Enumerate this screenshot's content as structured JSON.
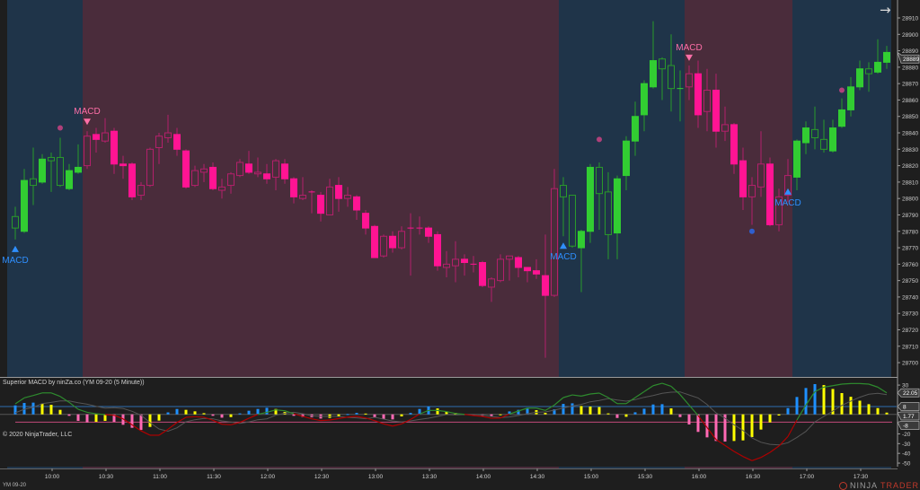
{
  "instrument": "YM 09-20",
  "indicator_title": "Superior MACD by ninZa.co (YM 09-20 (5 Minute))",
  "copyright": "© 2020 NinjaTrader, LLC",
  "logo": {
    "ninja": "NINJA",
    "trader": "TRADER",
    "reg": "®"
  },
  "nav_icon": "arrow-right-icon",
  "colors": {
    "background": "#1e1e1e",
    "region_up": "#1f3449",
    "region_down": "#4a2c3b",
    "candle_up": "#32cd32",
    "candle_up_outline": "#2a9a2a",
    "candle_down": "#ff1493",
    "candle_down_outline": "#b3206b",
    "hist_rising": "#1e90ff",
    "hist_falling": "#ff69b4",
    "hist_turning": "#ffff00",
    "macd_positive": "#2e8b2e",
    "macd_negative": "#b00000",
    "signal_line": "#555555",
    "level_upper": "#2f6db0",
    "level_lower": "#c04a7a",
    "signal_up": "#2f8fff",
    "signal_down": "#ff6fa8"
  },
  "chart_data": [
    {
      "type": "candlestick",
      "title": "",
      "ylim": [
        28695,
        28915
      ],
      "price_ticks": [
        28910,
        28900,
        28890,
        28880,
        28870,
        28860,
        28850,
        28840,
        28830,
        28820,
        28810,
        28800,
        28790,
        28780,
        28770,
        28760,
        28750,
        28740,
        28730,
        28720,
        28710,
        28700
      ],
      "last_price": "28889",
      "time_ticks": [
        "10:00",
        "10:30",
        "11:00",
        "11:30",
        "12:00",
        "12:30",
        "13:00",
        "13:30",
        "14:00",
        "14:30",
        "15:00",
        "15:30",
        "16:00",
        "16:30",
        "17:00",
        "17:30"
      ],
      "candles_columns": [
        "time",
        "open",
        "high",
        "low",
        "close"
      ],
      "candles": [
        [
          "09:40",
          28789,
          28795,
          28775,
          28782
        ],
        [
          "09:45",
          28780,
          28818,
          28779,
          28811
        ],
        [
          "09:50",
          28812,
          28831,
          28796,
          28808
        ],
        [
          "09:55",
          28810,
          28827,
          28809,
          28824
        ],
        [
          "10:00",
          28825,
          28828,
          28804,
          28823
        ],
        [
          "10:05",
          28825,
          28837,
          28807,
          28808
        ],
        [
          "10:10",
          28806,
          28821,
          28805,
          28817
        ],
        [
          "10:15",
          28816,
          28833,
          28815,
          28819
        ],
        [
          "10:20",
          28820,
          28841,
          28818,
          28838
        ],
        [
          "10:25",
          28839,
          28843,
          28828,
          28836
        ],
        [
          "10:30",
          28835,
          28849,
          28834,
          28840
        ],
        [
          "10:35",
          28841,
          28843,
          28815,
          28821
        ],
        [
          "10:40",
          28821,
          28826,
          28812,
          28820
        ],
        [
          "10:45",
          28821,
          28822,
          28799,
          28801
        ],
        [
          "10:50",
          28802,
          28810,
          28799,
          28808
        ],
        [
          "10:55",
          28808,
          28831,
          28807,
          28830
        ],
        [
          "11:00",
          28831,
          28840,
          28821,
          28838
        ],
        [
          "11:05",
          28837,
          28851,
          28834,
          28840
        ],
        [
          "11:10",
          28839,
          28843,
          28826,
          28830
        ],
        [
          "11:15",
          28829,
          28830,
          28806,
          28807
        ],
        [
          "11:20",
          28808,
          28820,
          28807,
          28817
        ],
        [
          "11:25",
          28816,
          28821,
          28810,
          28818
        ],
        [
          "11:30",
          28819,
          28822,
          28805,
          28806
        ],
        [
          "11:35",
          28805,
          28812,
          28800,
          28807
        ],
        [
          "11:40",
          28808,
          28816,
          28803,
          28815
        ],
        [
          "11:45",
          28814,
          28824,
          28813,
          28822
        ],
        [
          "11:50",
          28821,
          28829,
          28815,
          28816
        ],
        [
          "11:55",
          28815,
          28825,
          28813,
          28816
        ],
        [
          "12:00",
          28815,
          28821,
          28809,
          28812
        ],
        [
          "12:05",
          28813,
          28824,
          28805,
          28823
        ],
        [
          "12:10",
          28821,
          28824,
          28809,
          28812
        ],
        [
          "12:15",
          28812,
          28813,
          28797,
          28801
        ],
        [
          "12:20",
          28800,
          28813,
          28799,
          28802
        ],
        [
          "12:25",
          28804,
          28805,
          28791,
          28804
        ],
        [
          "12:30",
          28802,
          28804,
          28786,
          28791
        ],
        [
          "12:35",
          28790,
          28812,
          28790,
          28807
        ],
        [
          "12:40",
          28808,
          28813,
          28792,
          28800
        ],
        [
          "12:45",
          28800,
          28807,
          28795,
          28802
        ],
        [
          "12:50",
          28801,
          28802,
          28787,
          28793
        ],
        [
          "12:55",
          28791,
          28793,
          28778,
          28782
        ],
        [
          "13:00",
          28783,
          28784,
          28764,
          28764
        ],
        [
          "13:05",
          28765,
          28778,
          28764,
          28777
        ],
        [
          "13:10",
          28777,
          28780,
          28767,
          28770
        ],
        [
          "13:15",
          28770,
          28783,
          28769,
          28780
        ],
        [
          "13:20",
          28782,
          28791,
          28753,
          28782
        ],
        [
          "13:25",
          28782,
          28789,
          28778,
          28782
        ],
        [
          "13:30",
          28782,
          28783,
          28773,
          28777
        ],
        [
          "13:35",
          28778,
          28780,
          28756,
          28759
        ],
        [
          "13:40",
          28758,
          28768,
          28752,
          28760
        ],
        [
          "13:45",
          28759,
          28774,
          28749,
          28763
        ],
        [
          "13:50",
          28763,
          28766,
          28753,
          28761
        ],
        [
          "13:55",
          28760,
          28765,
          28755,
          28760
        ],
        [
          "14:00",
          28761,
          28762,
          28746,
          28747
        ],
        [
          "14:05",
          28746,
          28752,
          28737,
          28751
        ],
        [
          "14:10",
          28750,
          28766,
          28749,
          28763
        ],
        [
          "14:15",
          28763,
          28765,
          28750,
          28765
        ],
        [
          "14:20",
          28764,
          28765,
          28752,
          28758
        ],
        [
          "14:25",
          28758,
          28758,
          28749,
          28756
        ],
        [
          "14:30",
          28756,
          28763,
          28751,
          28754
        ],
        [
          "14:35",
          28753,
          28778,
          28703,
          28741
        ],
        [
          "14:40",
          28741,
          28818,
          28740,
          28806
        ],
        [
          "14:45",
          28808,
          28813,
          28777,
          28801
        ],
        [
          "14:50",
          28802,
          28802,
          28770,
          28771
        ],
        [
          "14:55",
          28770,
          28781,
          28743,
          28780
        ],
        [
          "15:00",
          28780,
          28821,
          28773,
          28819
        ],
        [
          "15:05",
          28819,
          28822,
          28781,
          28803
        ],
        [
          "15:10",
          28804,
          28816,
          28763,
          28778
        ],
        [
          "15:15",
          28779,
          28814,
          28763,
          28812
        ],
        [
          "15:20",
          28814,
          28838,
          28805,
          28835
        ],
        [
          "15:25",
          28835,
          28859,
          28826,
          28850
        ],
        [
          "15:30",
          28851,
          28872,
          28841,
          28870
        ],
        [
          "15:35",
          28868,
          28908,
          28867,
          28884
        ],
        [
          "15:40",
          28885,
          28886,
          28860,
          28879
        ],
        [
          "15:45",
          28881,
          28900,
          28853,
          28867
        ],
        [
          "15:50",
          28867,
          28878,
          28847,
          28867
        ],
        [
          "15:55",
          28868,
          28881,
          28860,
          28876
        ],
        [
          "16:00",
          28876,
          28884,
          28843,
          28851
        ],
        [
          "16:05",
          28853,
          28879,
          28841,
          28866
        ],
        [
          "16:10",
          28866,
          28876,
          28831,
          28841
        ],
        [
          "16:15",
          28841,
          28856,
          28835,
          28845
        ],
        [
          "16:20",
          28845,
          28846,
          28815,
          28821
        ],
        [
          "16:25",
          28823,
          28831,
          28793,
          28801
        ],
        [
          "16:30",
          28801,
          28813,
          28784,
          28808
        ],
        [
          "16:35",
          28807,
          28841,
          28801,
          28821
        ],
        [
          "16:40",
          28821,
          28825,
          28783,
          28784
        ],
        [
          "16:45",
          28784,
          28806,
          28780,
          28801
        ],
        [
          "16:50",
          28802,
          28824,
          28798,
          28814
        ],
        [
          "16:55",
          28813,
          28836,
          28805,
          28835
        ],
        [
          "17:00",
          28834,
          28847,
          28827,
          28843
        ],
        [
          "17:05",
          28842,
          28856,
          28830,
          28837
        ],
        [
          "17:10",
          28836,
          28848,
          28828,
          28830
        ],
        [
          "17:15",
          28829,
          28848,
          28828,
          28843
        ],
        [
          "17:20",
          28844,
          28861,
          28843,
          28854
        ],
        [
          "17:25",
          28854,
          28874,
          28850,
          28868
        ],
        [
          "17:30",
          28868,
          28884,
          28866,
          28879
        ],
        [
          "17:35",
          28879,
          28883,
          28865,
          28876
        ],
        [
          "17:40",
          28877,
          28897,
          28876,
          28883
        ],
        [
          "17:45",
          28883,
          28893,
          28879,
          28889
        ]
      ],
      "trend_regions": [
        {
          "from": "09:40",
          "to": "10:15",
          "trend": "up"
        },
        {
          "from": "10:20",
          "to": "14:40",
          "trend": "down"
        },
        {
          "from": "14:45",
          "to": "15:50",
          "trend": "up"
        },
        {
          "from": "15:55",
          "to": "16:50",
          "trend": "down"
        },
        {
          "from": "16:55",
          "to": "17:45",
          "trend": "up"
        }
      ],
      "signals": [
        {
          "time": "09:40",
          "direction": "up",
          "label": "MACD",
          "price": 28769
        },
        {
          "time": "10:20",
          "direction": "down",
          "label": "MACD",
          "price": 28847
        },
        {
          "time": "14:45",
          "direction": "up",
          "label": "MACD",
          "price": 28771
        },
        {
          "time": "15:55",
          "direction": "down",
          "label": "MACD",
          "price": 28886
        },
        {
          "time": "16:50",
          "direction": "up",
          "label": "MACD",
          "price": 28804
        }
      ],
      "dots": [
        {
          "time": "10:05",
          "price": 28843,
          "color": "#b0407a"
        },
        {
          "time": "15:05",
          "price": 28836,
          "color": "#b0407a"
        },
        {
          "time": "16:30",
          "price": 28780,
          "color": "#2f5fcf"
        },
        {
          "time": "17:20",
          "price": 28866,
          "color": "#b0407a"
        }
      ]
    },
    {
      "type": "bar+line",
      "title": "Superior MACD by ninZa.co (YM 09-20 (5 Minute))",
      "ylim": [
        -52,
        32
      ],
      "axis_ticks": [
        "30",
        "-20",
        "-30",
        "-40",
        "-50"
      ],
      "axis_tick_values": [
        30,
        -20,
        -30,
        -40,
        -50
      ],
      "flags": [
        {
          "label": "22.05",
          "value": 22.05
        },
        {
          "label": "8",
          "value": 8
        },
        {
          "label": "1.77",
          "value": 1.77
        },
        {
          "label": "-8",
          "value": -8
        }
      ],
      "levels": [
        8,
        -8
      ],
      "histogram": [
        9.2,
        11.7,
        12.0,
        11.0,
        9.8,
        4.6,
        -1.5,
        -6.7,
        -8.3,
        -7.7,
        -6.7,
        -7.7,
        -10.7,
        -13.8,
        -16.0,
        -12.9,
        -6.4,
        2.0,
        5.5,
        4.6,
        3.1,
        1.2,
        -1.5,
        -3.4,
        -2.8,
        1.0,
        3.7,
        5.5,
        6.7,
        5.5,
        2.5,
        -1.5,
        -2.8,
        -3.0,
        -4.3,
        -3.7,
        -2.1,
        0.3,
        1.5,
        0.8,
        -3.4,
        -4.9,
        -5.2,
        -2.1,
        1.5,
        5.5,
        8.0,
        6.1,
        3.0,
        1.5,
        0.2,
        -1.0,
        -1.5,
        -1.8,
        -0.5,
        3.0,
        4.6,
        5.8,
        4.3,
        1.5,
        5.2,
        10.7,
        11.3,
        8.5,
        8.0,
        7.5,
        1.0,
        -3.7,
        -2.5,
        2.1,
        5.8,
        10.1,
        10.4,
        6.1,
        -2.8,
        -10.4,
        -18.0,
        -23.6,
        -27.3,
        -27.9,
        -27.3,
        -26.7,
        -23.3,
        -15.6,
        -8.3,
        -1.2,
        6.4,
        17.8,
        27.0,
        31.0,
        30.0,
        26.0,
        21.8,
        18.0,
        14.0,
        10.4,
        6.4,
        1.77
      ],
      "macd": [
        10.8,
        16.9,
        19.3,
        22.0,
        22.0,
        18.4,
        12.3,
        5.2,
        2.1,
        0.6,
        -0.3,
        -0.9,
        -4.6,
        -10.7,
        -16.9,
        -21.4,
        -21.4,
        -15.3,
        -8.3,
        -3.0,
        -2.4,
        -3.0,
        -6.1,
        -10.1,
        -10.7,
        -8.3,
        -4.0,
        0.0,
        2.1,
        4.6,
        3.7,
        0.6,
        -2.1,
        -4.6,
        -6.4,
        -5.8,
        -4.3,
        -2.8,
        -2.1,
        -3.7,
        -6.4,
        -9.8,
        -12.0,
        -9.8,
        -5.2,
        0.3,
        4.0,
        4.0,
        2.8,
        0.9,
        0.0,
        -1.2,
        -2.1,
        -4.0,
        -3.7,
        0.3,
        3.4,
        6.4,
        6.4,
        4.0,
        9.5,
        17.2,
        19.9,
        18.7,
        20.9,
        21.8,
        17.2,
        11.0,
        11.0,
        17.2,
        23.3,
        29.4,
        31.9,
        28.8,
        20.2,
        9.5,
        -1.2,
        -13.5,
        -25.8,
        -31.9,
        -38.0,
        -43.2,
        -47.5,
        -44.2,
        -39.0,
        -32.5,
        -22.7,
        -5.8,
        9.5,
        23.3,
        27.9,
        29.4,
        31.0,
        31.6,
        31.6,
        31.0,
        27.9,
        22.05
      ]
    }
  ]
}
